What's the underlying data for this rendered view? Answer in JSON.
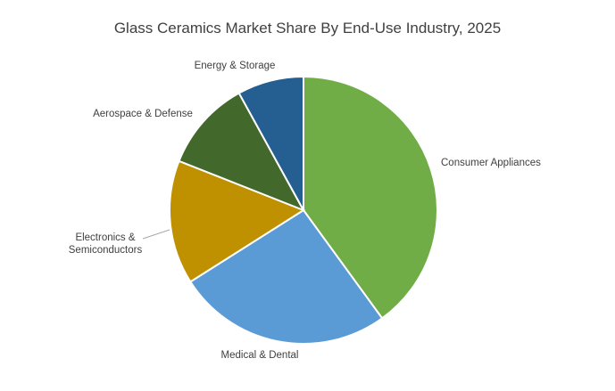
{
  "chart_data": {
    "type": "pie",
    "title": "Glass Ceramics Market Share By End-Use Industry, 2025",
    "slices": [
      {
        "label": "Consumer Appliances",
        "value": 40,
        "color": "#70AD47"
      },
      {
        "label": "Medical & Dental",
        "value": 26,
        "color": "#5B9BD5"
      },
      {
        "label": "Electronics & Semiconductors",
        "value": 15,
        "color": "#BF9000"
      },
      {
        "label": "Aerospace & Defense",
        "value": 11,
        "color": "#43682B"
      },
      {
        "label": "Energy & Storage",
        "value": 8,
        "color": "#255E91"
      }
    ],
    "legend": "none",
    "data_labels": "category name"
  }
}
